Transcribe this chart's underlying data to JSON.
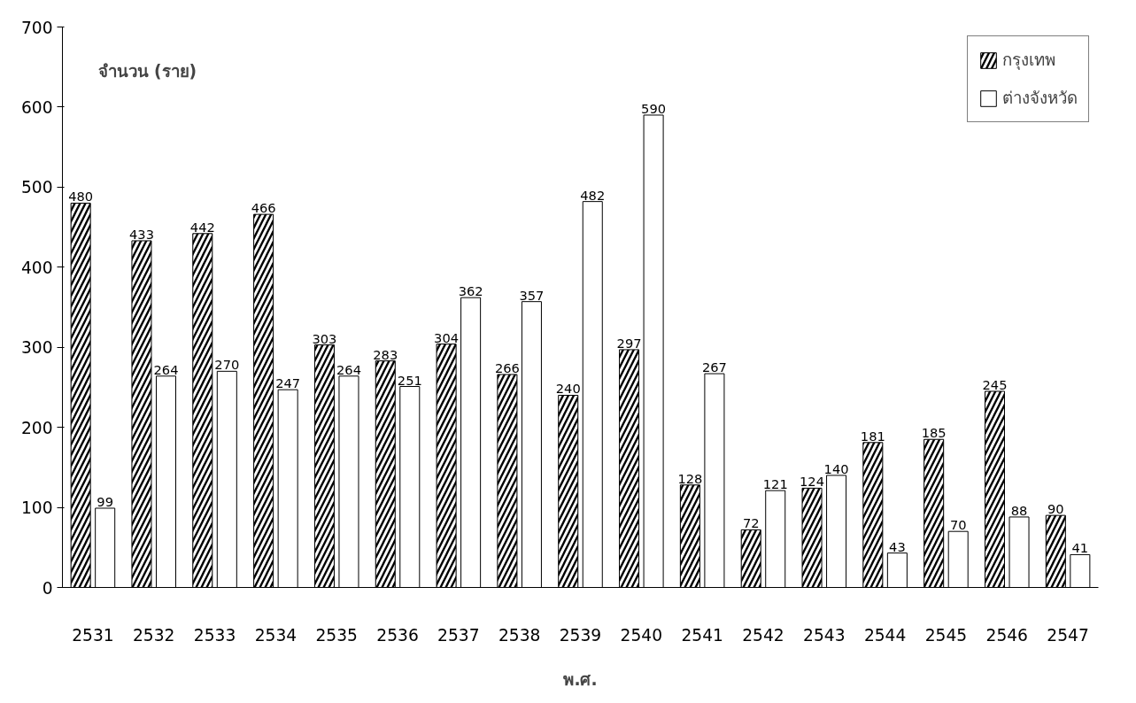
{
  "chart_data": {
    "type": "bar",
    "ylabel": "จำนวน (ราย)",
    "xlabel": "พ.ศ.",
    "categories": [
      "2531",
      "2532",
      "2533",
      "2534",
      "2535",
      "2536",
      "2537",
      "2538",
      "2539",
      "2540",
      "2541",
      "2542",
      "2543",
      "2544",
      "2545",
      "2546",
      "2547"
    ],
    "series": [
      {
        "name": "กรุงเทพ",
        "color": "#000000",
        "values": [
          480,
          433,
          442,
          466,
          303,
          283,
          304,
          266,
          240,
          297,
          128,
          72,
          124,
          181,
          185,
          245,
          90
        ]
      },
      {
        "name": "ต่างจังหวัด",
        "color": "#ffffff",
        "values": [
          99,
          264,
          270,
          247,
          264,
          251,
          362,
          357,
          482,
          590,
          267,
          121,
          140,
          43,
          70,
          88,
          41
        ]
      }
    ],
    "ylim": [
      0,
      700
    ],
    "yticks": [
      0,
      100,
      200,
      300,
      400,
      500,
      600,
      700
    ],
    "grid": false,
    "legend": "top right",
    "data_labels": true
  }
}
